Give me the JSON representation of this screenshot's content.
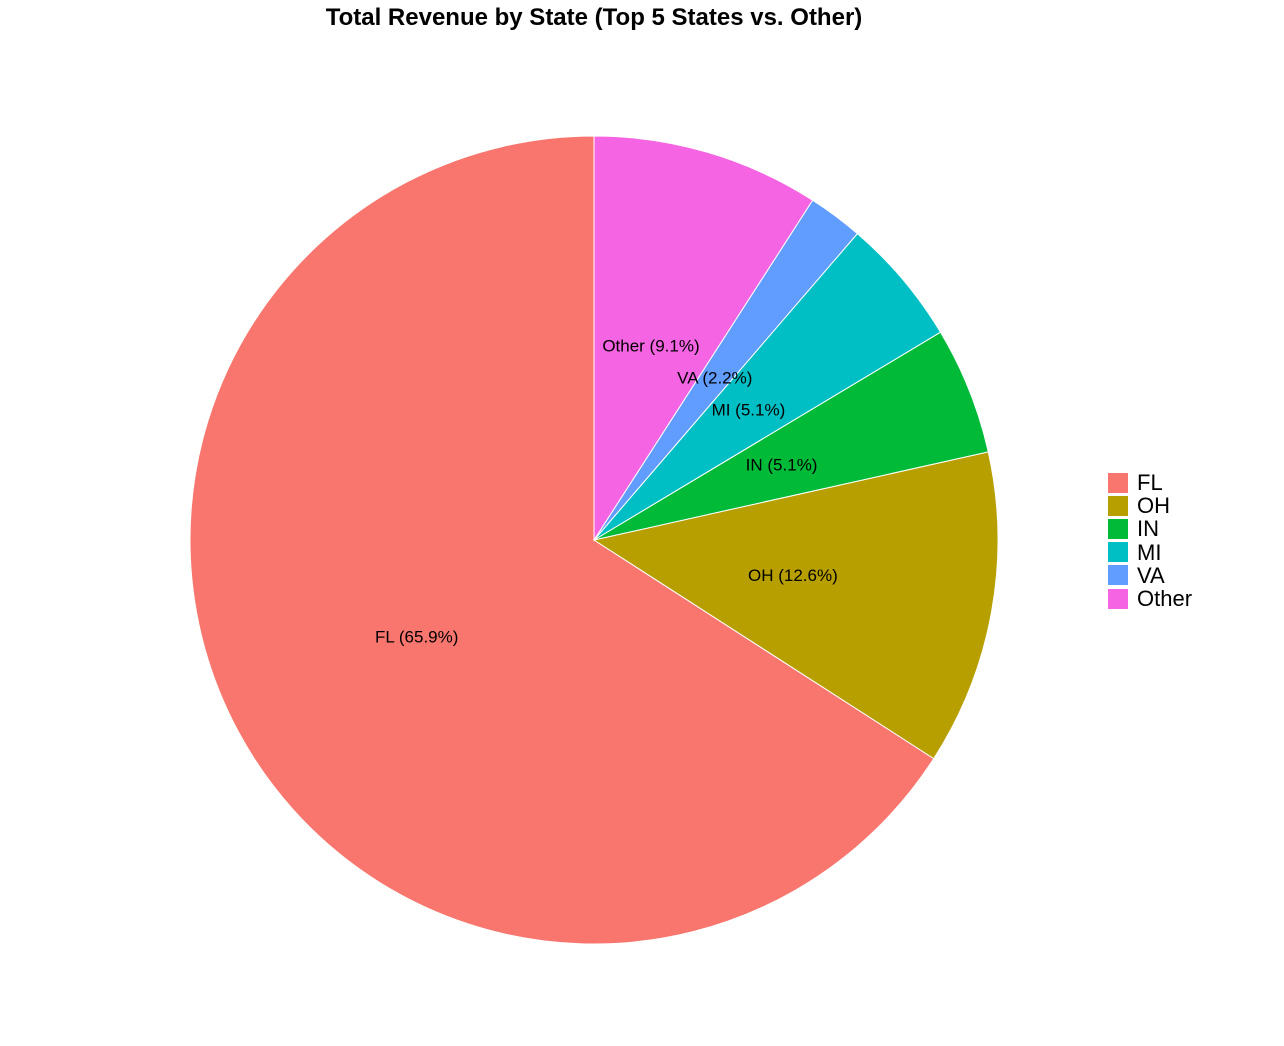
{
  "chart_data": {
    "type": "pie",
    "title": "Total Revenue by State (Top 5 States vs. Other)",
    "direction": "counterclockwise",
    "start": "12 o'clock",
    "slices": [
      {
        "name": "FL",
        "value": 65.9,
        "label": "FL (65.9%)",
        "color": "#F8766D"
      },
      {
        "name": "OH",
        "value": 12.6,
        "label": "OH (12.6%)",
        "color": "#B79F00"
      },
      {
        "name": "IN",
        "value": 5.1,
        "label": "IN (5.1%)",
        "color": "#00BA38"
      },
      {
        "name": "MI",
        "value": 5.1,
        "label": "MI (5.1%)",
        "color": "#00BFC4"
      },
      {
        "name": "VA",
        "value": 2.2,
        "label": "VA (2.2%)",
        "color": "#619CFF"
      },
      {
        "name": "Other",
        "value": 9.1,
        "label": "Other (9.1%)",
        "color": "#F564E3"
      }
    ],
    "legend": {
      "position": "right",
      "entries": [
        "FL",
        "OH",
        "IN",
        "MI",
        "VA",
        "Other"
      ]
    }
  }
}
